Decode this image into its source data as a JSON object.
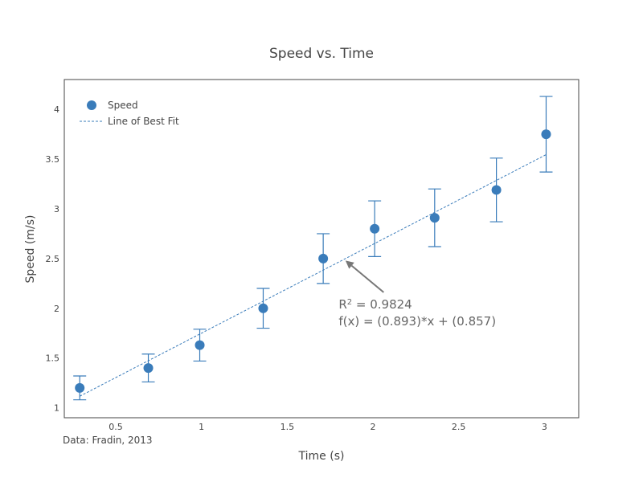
{
  "chart_data": {
    "type": "scatter",
    "title": "Speed vs. Time",
    "xlabel": "Time (s)",
    "ylabel": "Speed (m/s)",
    "xlim": [
      0.2,
      3.2
    ],
    "ylim": [
      0.9,
      4.3
    ],
    "xticks": [
      0.5,
      1,
      1.5,
      2,
      2.5,
      3
    ],
    "xtick_labels": [
      "0.5",
      "1",
      "1.5",
      "2",
      "2.5",
      "3"
    ],
    "yticks": [
      1,
      1.5,
      2,
      2.5,
      3,
      3.5,
      4
    ],
    "ytick_labels": [
      "1",
      "1.5",
      "2",
      "2.5",
      "3",
      "3.5",
      "4"
    ],
    "grid": false,
    "legend_position": "top-left",
    "series": [
      {
        "name": "Speed",
        "color": "#3a7cba",
        "marker": "circle",
        "x": [
          0.29,
          0.69,
          0.99,
          1.36,
          1.71,
          2.01,
          2.36,
          2.72,
          3.01
        ],
        "y": [
          1.2,
          1.4,
          1.63,
          2.0,
          2.5,
          2.8,
          2.91,
          3.19,
          3.75
        ],
        "error_y": [
          0.12,
          0.14,
          0.16,
          0.2,
          0.25,
          0.28,
          0.29,
          0.32,
          0.38
        ]
      },
      {
        "name": "Line of Best Fit",
        "color": "#3a7cba",
        "line_style": "dashed",
        "x": [
          0.29,
          3.01
        ],
        "y": [
          1.116,
          3.545
        ]
      }
    ],
    "annotation": {
      "r2_label": "R",
      "r2_sup": "2",
      "r2_value": " = 0.9824",
      "equation": "f(x) = (0.893)*x + (0.857)",
      "arrow_target": {
        "x": 1.84,
        "y": 2.48
      },
      "text_anchor": {
        "x": 1.8,
        "y": 2.04
      }
    },
    "source": "Data: Fradin, 2013"
  }
}
